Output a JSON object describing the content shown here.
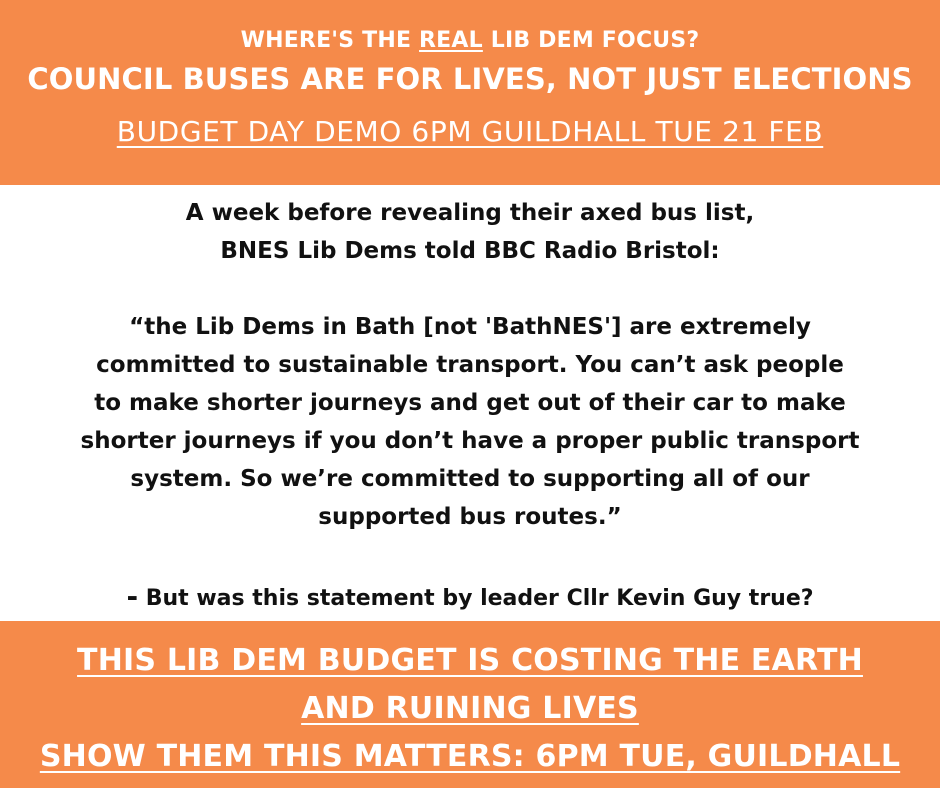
{
  "top_banner": {
    "kicker_before": "WHERE'S THE ",
    "kicker_emphasis": "REAL",
    "kicker_after": " LIB DEM FOCUS?",
    "headline": "COUNCIL BUSES ARE FOR LIVES, NOT JUST ELECTIONS",
    "demo_line": "BUDGET DAY DEMO 6PM GUILDHALL TUE 21 FEB"
  },
  "body": {
    "intro_line_1": "A week before revealing their axed bus list,",
    "intro_line_2": "BNES Lib Dems told BBC Radio Bristol:",
    "quote_lines": [
      "“the Lib Dems in Bath [not 'BathNES'] are extremely",
      "committed to sustainable transport. You can’t ask people",
      "to make shorter journeys and get out of their car to make",
      "shorter journeys if you don’t have a proper public transport",
      "system. So we’re committed to supporting all of our",
      "supported bus routes.”"
    ],
    "question_dash": "-",
    "question_text": " But was this statement by leader Cllr Kevin Guy true?"
  },
  "bottom_banner": {
    "line_1": "THIS LIB DEM BUDGET IS COSTING THE EARTH",
    "line_2": "AND RUINING  LIVES",
    "line_3": "SHOW THEM THIS MATTERS: 6PM TUE, GUILDHALL"
  },
  "colors": {
    "banner_orange": "#f58a4a",
    "banner_text": "#ffffff",
    "body_text": "#111111",
    "background": "#ffffff"
  }
}
